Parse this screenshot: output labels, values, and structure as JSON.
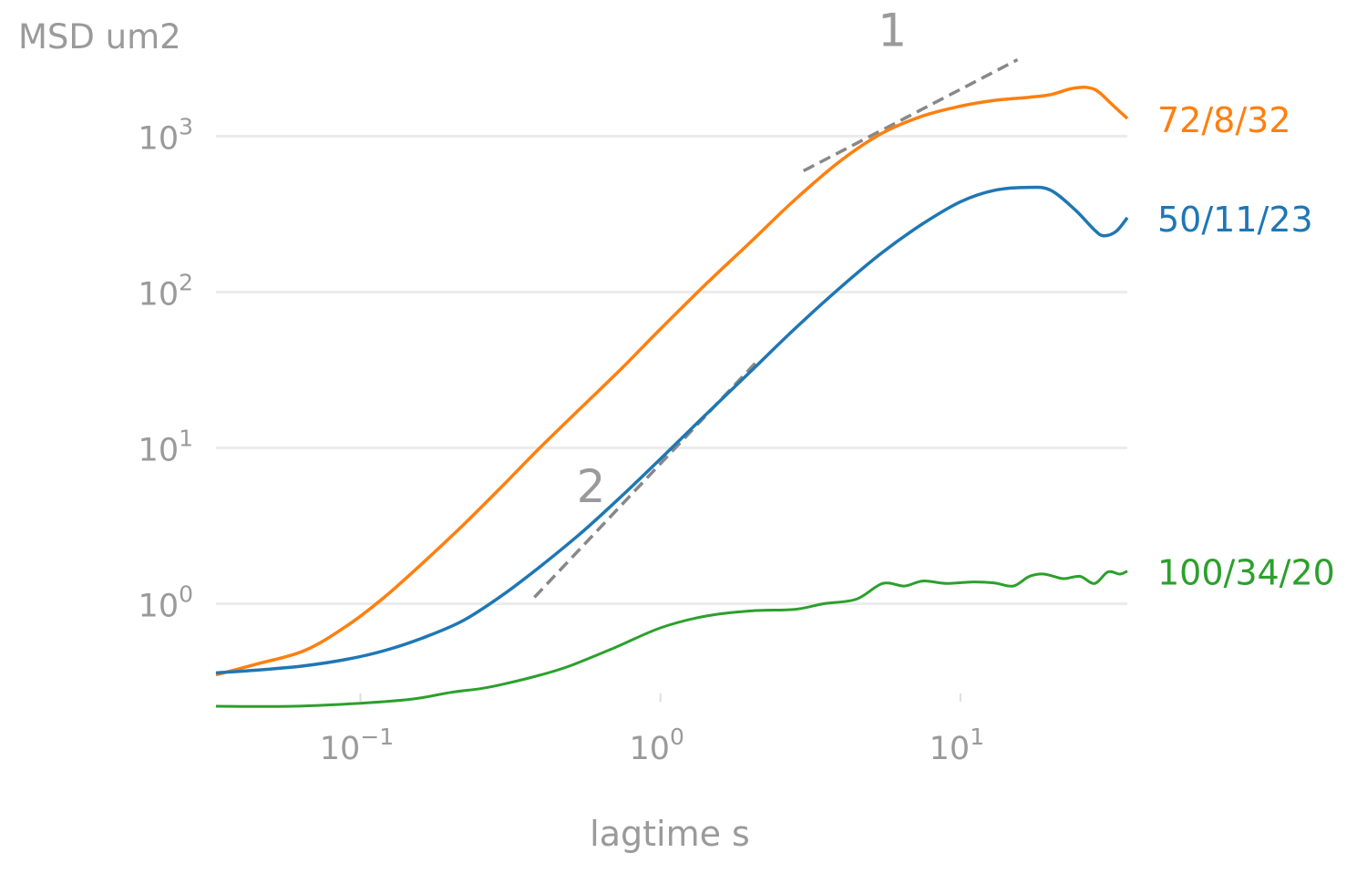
{
  "chart_data": {
    "type": "line",
    "title": "",
    "xlabel": "lagtime s",
    "ylabel": "MSD um2",
    "xscale": "log",
    "yscale": "log",
    "xlim": [
      0.033,
      36
    ],
    "ylim": [
      0.22,
      5000
    ],
    "grid": "horizontal",
    "legend": "inline-right",
    "x_ticks": [
      {
        "value": 0.1,
        "base": "10",
        "exp": "−1"
      },
      {
        "value": 1,
        "base": "10",
        "exp": "0"
      },
      {
        "value": 10,
        "base": "10",
        "exp": "1"
      }
    ],
    "y_ticks": [
      {
        "value": 1,
        "base": "10",
        "exp": "0"
      },
      {
        "value": 10,
        "base": "10",
        "exp": "1"
      },
      {
        "value": 100,
        "base": "10",
        "exp": "2"
      },
      {
        "value": 1000,
        "base": "10",
        "exp": "3"
      }
    ],
    "series": [
      {
        "name": "72/8/32",
        "color": "#ff7f0e",
        "x": [
          0.033,
          0.045,
          0.065,
          0.09,
          0.12,
          0.16,
          0.22,
          0.3,
          0.4,
          0.55,
          0.75,
          1.0,
          1.4,
          2.0,
          2.8,
          4.0,
          5.5,
          7.5,
          10,
          13,
          17,
          20,
          24,
          28,
          32,
          36
        ],
        "y": [
          0.35,
          0.41,
          0.5,
          0.72,
          1.1,
          1.8,
          3.2,
          5.8,
          10.2,
          18.5,
          33,
          58,
          110,
          210,
          390,
          700,
          1050,
          1350,
          1560,
          1700,
          1780,
          1850,
          2040,
          2000,
          1600,
          1300
        ]
      },
      {
        "name": "50/11/23",
        "color": "#1f77b4",
        "x": [
          0.033,
          0.045,
          0.065,
          0.09,
          0.12,
          0.16,
          0.22,
          0.3,
          0.4,
          0.55,
          0.75,
          1.0,
          1.4,
          2.0,
          2.8,
          4.0,
          5.5,
          7.5,
          10,
          13,
          17,
          20,
          24,
          28,
          30,
          33,
          36
        ],
        "y": [
          0.36,
          0.375,
          0.4,
          0.44,
          0.5,
          0.6,
          0.78,
          1.15,
          1.75,
          2.9,
          5.0,
          8.5,
          16,
          31,
          58,
          108,
          180,
          275,
          380,
          450,
          470,
          450,
          340,
          250,
          230,
          245,
          300
        ]
      },
      {
        "name": "100/34/20",
        "color": "#2ca02c",
        "x": [
          0.033,
          0.06,
          0.1,
          0.15,
          0.2,
          0.25,
          0.3,
          0.4,
          0.5,
          0.7,
          1.0,
          1.4,
          2.0,
          2.8,
          3.5,
          4.5,
          5.5,
          6.5,
          7.5,
          9,
          11,
          13,
          15,
          17,
          19,
          22,
          25,
          28,
          31,
          34,
          36
        ],
        "y": [
          0.22,
          0.22,
          0.23,
          0.245,
          0.27,
          0.285,
          0.305,
          0.35,
          0.4,
          0.52,
          0.7,
          0.83,
          0.9,
          0.92,
          1.0,
          1.07,
          1.35,
          1.3,
          1.4,
          1.35,
          1.38,
          1.36,
          1.3,
          1.5,
          1.55,
          1.45,
          1.5,
          1.35,
          1.6,
          1.55,
          1.62
        ]
      }
    ],
    "annotations": [
      {
        "text": "2",
        "slope": 2,
        "x": [
          0.38,
          2.1
        ],
        "y": [
          1.1,
          36
        ]
      },
      {
        "text": "1",
        "slope": 1,
        "x": [
          3.0,
          15.5
        ],
        "y": [
          600,
          3100
        ]
      }
    ]
  }
}
